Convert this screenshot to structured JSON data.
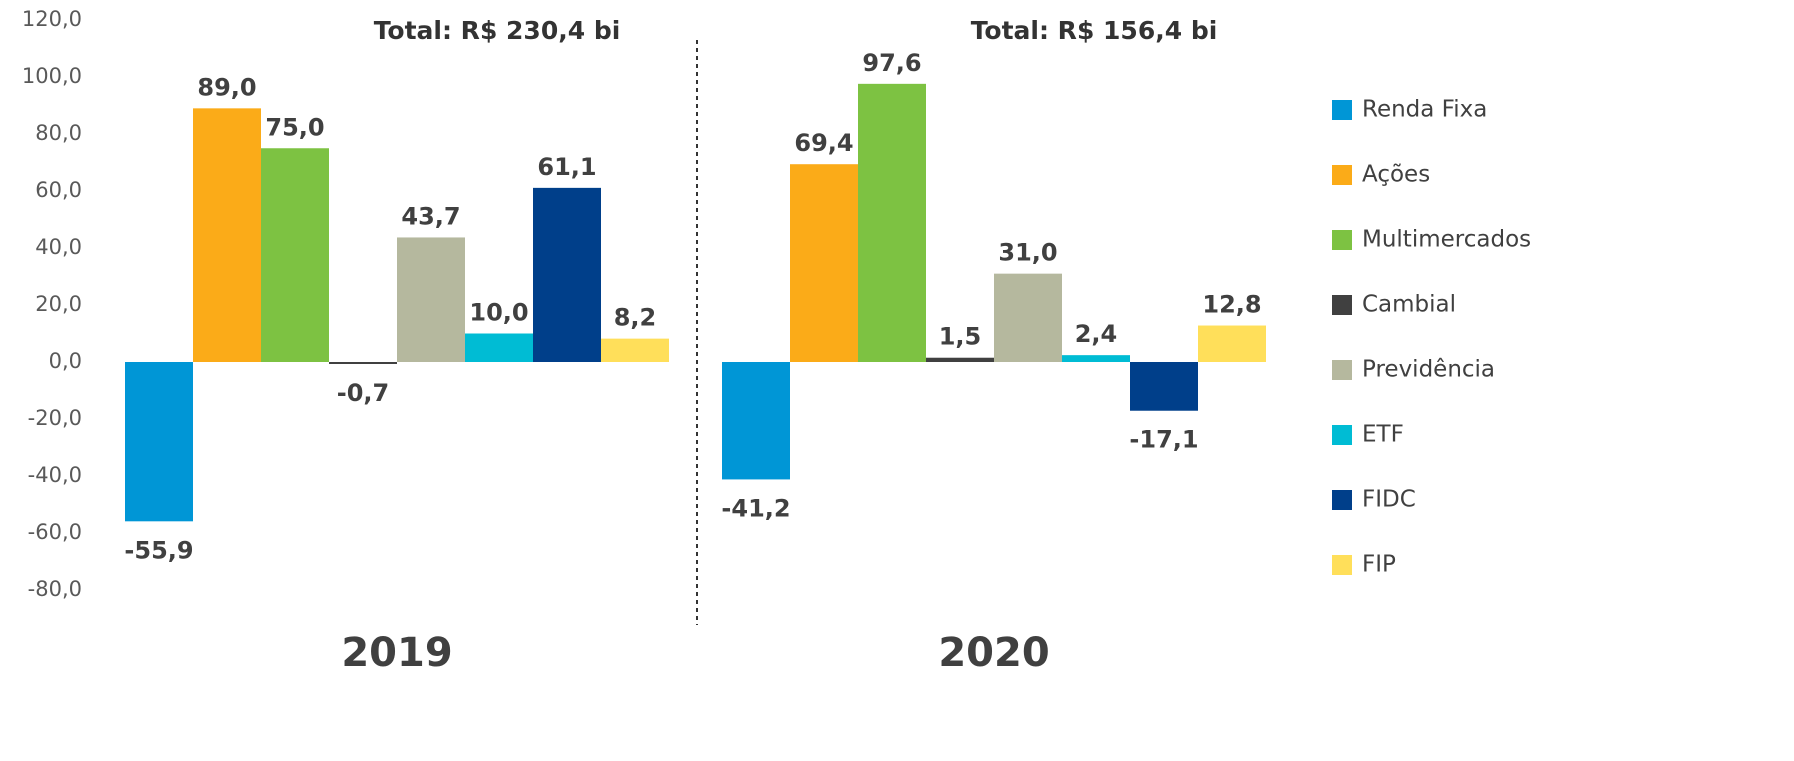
{
  "chart_data": {
    "type": "bar",
    "categories": [
      "2019",
      "2020"
    ],
    "annotations": [
      "Total:  R$ 230,4 bi",
      "Total:  R$ 156,4 bi"
    ],
    "ylim": [
      -80,
      120
    ],
    "yticks": [
      {
        "value": -80,
        "label": "-80,0"
      },
      {
        "value": -60,
        "label": "-60,0"
      },
      {
        "value": -40,
        "label": "-40,0"
      },
      {
        "value": -20,
        "label": "-20,0"
      },
      {
        "value": 0,
        "label": "0,0"
      },
      {
        "value": 20,
        "label": "20,0"
      },
      {
        "value": 40,
        "label": "40,0"
      },
      {
        "value": 60,
        "label": "60,0"
      },
      {
        "value": 80,
        "label": "80,0"
      },
      {
        "value": 100,
        "label": "100,0"
      },
      {
        "value": 120,
        "label": "120,0"
      }
    ],
    "grid": false,
    "legend": "right",
    "series": [
      {
        "name": "Renda Fixa",
        "color": "#0096d6",
        "values": [
          -55.9,
          -41.2
        ],
        "value_labels": [
          "-55,9",
          "-41,2"
        ]
      },
      {
        "name": "Ações",
        "color": "#fbab18",
        "values": [
          89.0,
          69.4
        ],
        "value_labels": [
          "89,0",
          "69,4"
        ]
      },
      {
        "name": "Multimercados",
        "color": "#7dc242",
        "values": [
          75.0,
          97.6
        ],
        "value_labels": [
          "75,0",
          "97,6"
        ]
      },
      {
        "name": "Cambial",
        "color": "#404040",
        "values": [
          -0.7,
          1.5
        ],
        "value_labels": [
          "-0,7",
          "1,5"
        ]
      },
      {
        "name": "Previdência",
        "color": "#b5b89e",
        "values": [
          43.7,
          31.0
        ],
        "value_labels": [
          "43,7",
          "31,0"
        ]
      },
      {
        "name": "ETF",
        "color": "#00bcd4",
        "values": [
          10.0,
          2.4
        ],
        "value_labels": [
          "10,0",
          "2,4"
        ]
      },
      {
        "name": "FIDC",
        "color": "#003f8a",
        "values": [
          61.1,
          -17.1
        ],
        "value_labels": [
          "61,1",
          "-17,1"
        ]
      },
      {
        "name": "FIP",
        "color": "#ffdf5a",
        "values": [
          8.2,
          12.8
        ],
        "value_labels": [
          "8,2",
          "12,8"
        ]
      }
    ]
  }
}
